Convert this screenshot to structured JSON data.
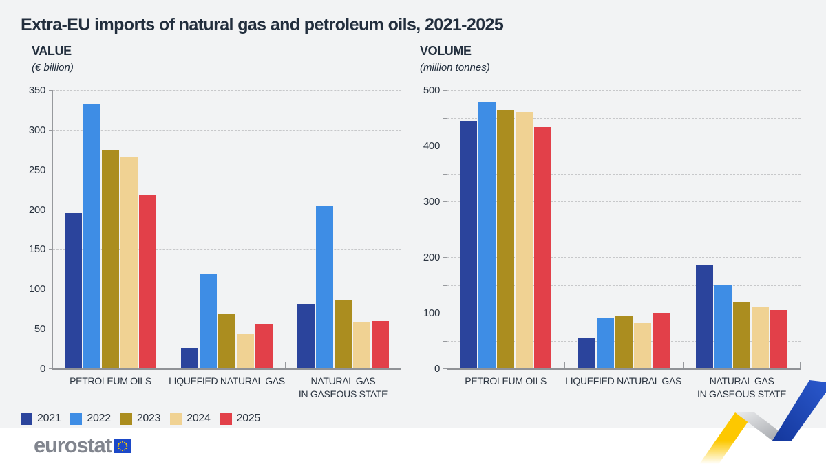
{
  "title": "Extra-EU imports of natural gas and petroleum oils, 2021-2025",
  "colors": {
    "background_panel": "#f2f3f4",
    "title_text": "#222e3d",
    "gridline": "#c7c8ca",
    "axis": "#97999d",
    "series": {
      "2021": "#2b449c",
      "2022": "#3e8de5",
      "2023": "#ab8d1f",
      "2024": "#f0d293",
      "2025": "#e24049"
    },
    "ribbon_yellow": "#fdc800",
    "ribbon_gray": "#a6a8ac",
    "ribbon_blue": "#1b4ac0",
    "eu_flag_blue": "#1c49c8",
    "eu_star_yellow": "#ffcc00",
    "logo_gray": "#81858e"
  },
  "legend": {
    "items": [
      {
        "label": "2021",
        "color": "#2b449c"
      },
      {
        "label": "2022",
        "color": "#3e8de5"
      },
      {
        "label": "2023",
        "color": "#ab8d1f"
      },
      {
        "label": "2024",
        "color": "#f0d293"
      },
      {
        "label": "2025",
        "color": "#e24049"
      }
    ]
  },
  "footer": {
    "logo_text": "eurostat"
  },
  "chart_data": [
    {
      "type": "bar",
      "title": "VALUE",
      "subtitle": "(€ billion)",
      "categories": [
        "PETROLEUM OILS",
        "LIQUEFIED NATURAL GAS",
        "NATURAL GAS\nIN GASEOUS STATE"
      ],
      "series": [
        {
          "name": "2021",
          "values": [
            195,
            26,
            81
          ]
        },
        {
          "name": "2022",
          "values": [
            332,
            119,
            204
          ]
        },
        {
          "name": "2023",
          "values": [
            275,
            68,
            86
          ]
        },
        {
          "name": "2024",
          "values": [
            266,
            43,
            58
          ]
        },
        {
          "name": "2025",
          "values": [
            219,
            56,
            60
          ]
        }
      ],
      "ylim": [
        0,
        350
      ],
      "ytick": 50,
      "label_every": 1,
      "grid": "dashed",
      "legend_position": "bottom-left"
    },
    {
      "type": "bar",
      "title": "VOLUME",
      "subtitle": "(million tonnes)",
      "categories": [
        "PETROLEUM OILS",
        "LIQUEFIED NATURAL GAS",
        "NATURAL GAS\nIN GASEOUS STATE"
      ],
      "series": [
        {
          "name": "2021",
          "values": [
            444,
            56,
            187
          ]
        },
        {
          "name": "2022",
          "values": [
            478,
            91,
            151
          ]
        },
        {
          "name": "2023",
          "values": [
            464,
            94,
            118
          ]
        },
        {
          "name": "2024",
          "values": [
            460,
            81,
            110
          ]
        },
        {
          "name": "2025",
          "values": [
            433,
            100,
            105
          ]
        }
      ],
      "ylim": [
        0,
        500
      ],
      "ytick": 50,
      "label_every": 2,
      "grid": "dashed",
      "legend_position": "none"
    }
  ]
}
